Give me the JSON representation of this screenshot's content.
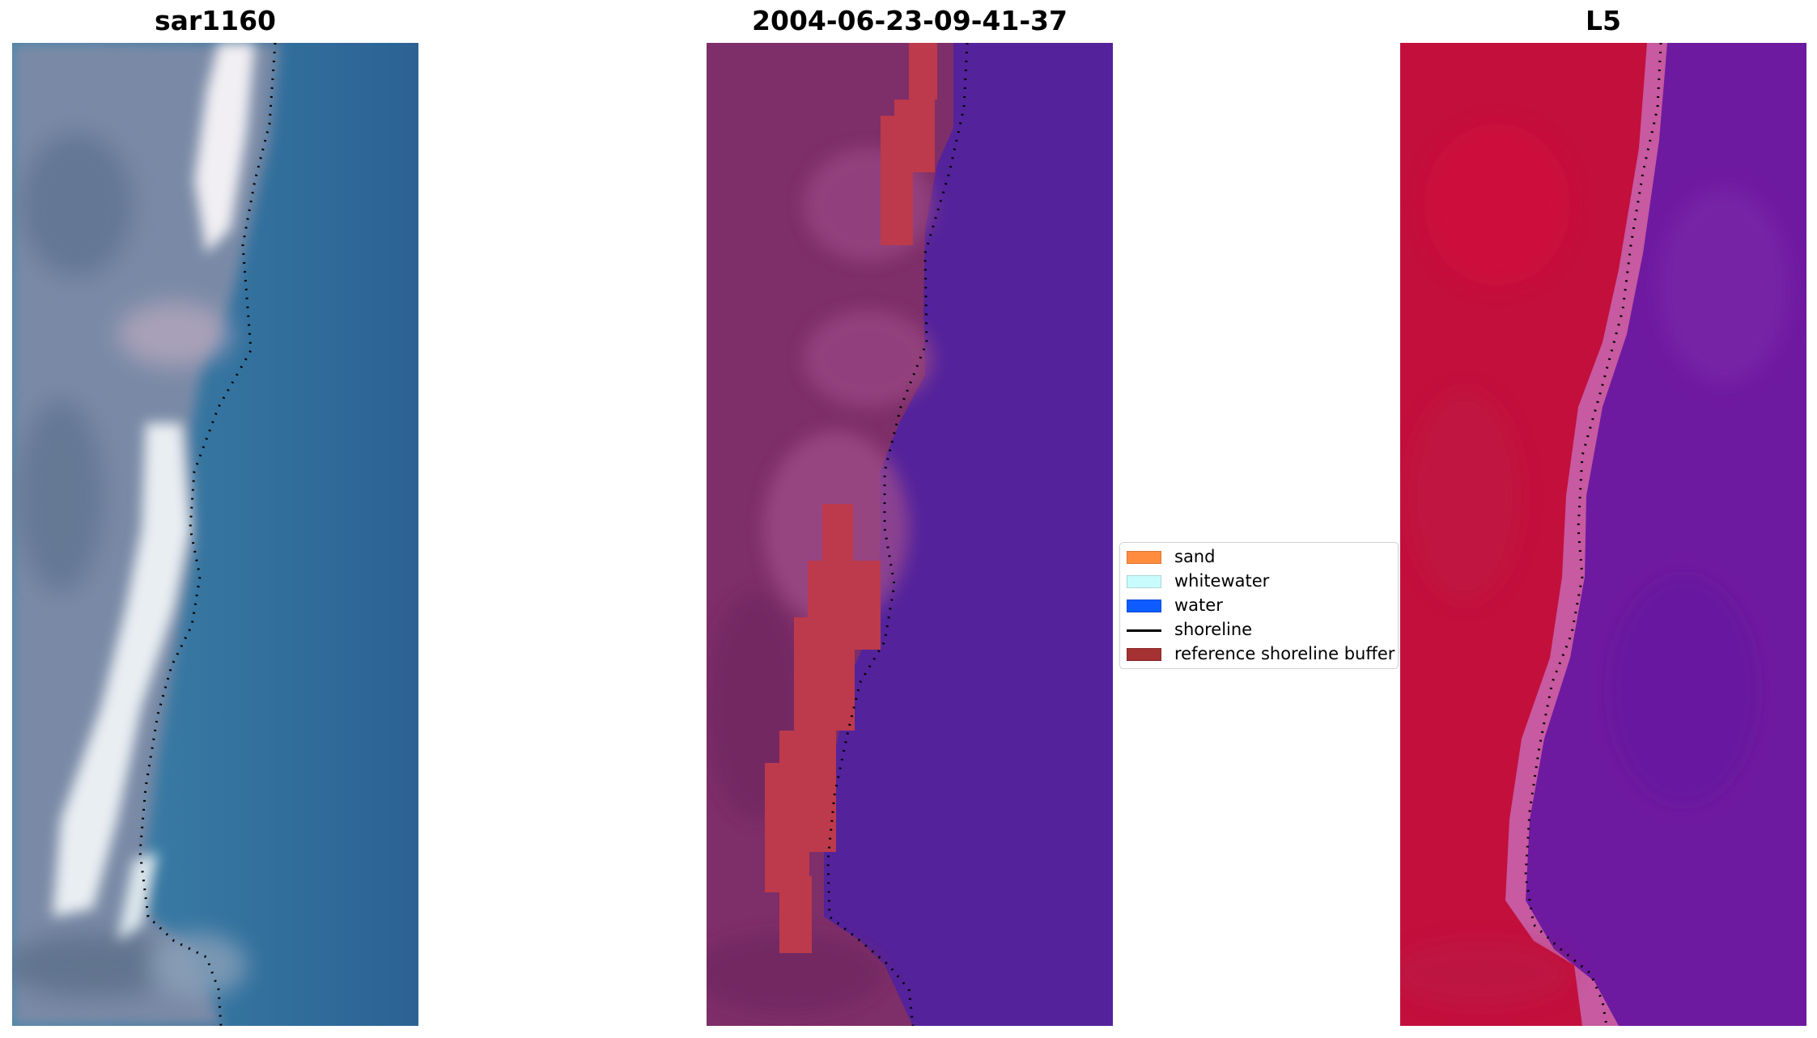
{
  "panels": {
    "left": {
      "title": "sar1160"
    },
    "middle": {
      "title": "2004-06-23-09-41-37"
    },
    "right": {
      "title": "L5"
    }
  },
  "legend": {
    "items": [
      {
        "label": "sand",
        "kind": "patch",
        "color": "#ff8c3f"
      },
      {
        "label": "whitewater",
        "kind": "patch",
        "color": "#c8fcfc"
      },
      {
        "label": "water",
        "kind": "patch",
        "color": "#0d5cff"
      },
      {
        "label": "shoreline",
        "kind": "line",
        "color": "#000000"
      },
      {
        "label": "reference shoreline buffer",
        "kind": "patch",
        "color": "#a43233"
      }
    ]
  },
  "colors": {
    "rgb_sand": "#9aa3b8",
    "rgb_sand_bright": "#f2f2f4",
    "rgb_water": "#2f74a0",
    "class_land": "#7e2e68",
    "class_water": "#54239b",
    "class_buffer": "#bc3a4c",
    "index_land": "#c30f3c",
    "index_water": "#6e1aa0",
    "index_edge": "#c75aa0",
    "shoreline": "#000000"
  }
}
